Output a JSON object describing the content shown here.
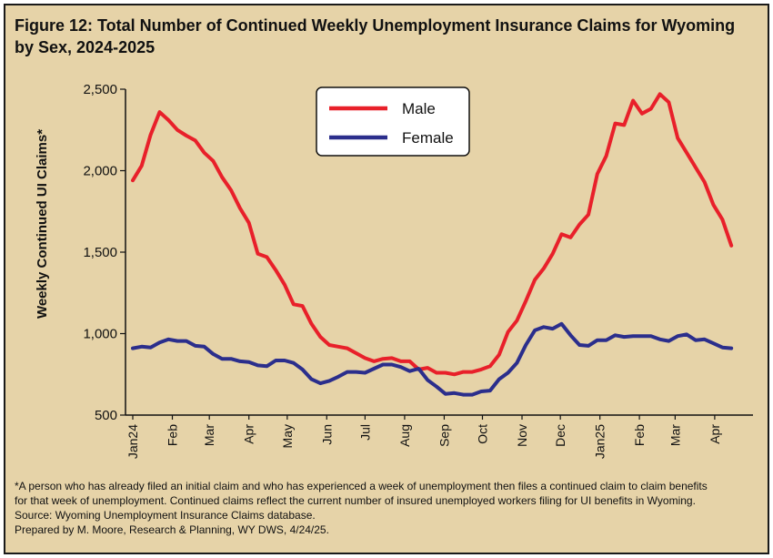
{
  "title": "Figure 12: Total Number of Continued Weekly Unemployment Insurance Claims for Wyoming by Sex, 2024-2025",
  "chart_data": {
    "type": "line",
    "ylabel": "Weekly Continued UI Claims*",
    "xlabel": "",
    "ylim": [
      500,
      2500
    ],
    "yticks": [
      500,
      1000,
      1500,
      2000,
      2500
    ],
    "ytick_labels": [
      "500",
      "1,000",
      "1,500",
      "2,000",
      "2,500"
    ],
    "grid": false,
    "legend": "top-center",
    "week_count": 69,
    "month_ticks": [
      {
        "label": "Jan24",
        "week": 0
      },
      {
        "label": "Feb",
        "week": 4.43
      },
      {
        "label": "Mar",
        "week": 8.57
      },
      {
        "label": "Apr",
        "week": 13
      },
      {
        "label": "May",
        "week": 17.29
      },
      {
        "label": "Jun",
        "week": 21.71
      },
      {
        "label": "Jul",
        "week": 26
      },
      {
        "label": "Aug",
        "week": 30.43
      },
      {
        "label": "Sep",
        "week": 34.86
      },
      {
        "label": "Oct",
        "week": 39.14
      },
      {
        "label": "Nov",
        "week": 43.57
      },
      {
        "label": "Dec",
        "week": 47.86
      },
      {
        "label": "Jan25",
        "week": 52.29
      },
      {
        "label": "Feb",
        "week": 56.71
      },
      {
        "label": "Mar",
        "week": 60.71
      },
      {
        "label": "Apr",
        "week": 65.14
      }
    ],
    "series": [
      {
        "name": "Male",
        "color": "#e8202a",
        "values": [
          1940,
          2030,
          2220,
          2360,
          2310,
          2250,
          2215,
          2185,
          2110,
          2060,
          1960,
          1880,
          1770,
          1680,
          1490,
          1470,
          1390,
          1300,
          1180,
          1170,
          1060,
          980,
          930,
          920,
          910,
          880,
          850,
          830,
          845,
          850,
          830,
          830,
          780,
          790,
          760,
          760,
          750,
          765,
          765,
          780,
          800,
          870,
          1010,
          1080,
          1200,
          1330,
          1400,
          1490,
          1610,
          1590,
          1670,
          1730,
          1980,
          2090,
          2290,
          2280,
          2430,
          2350,
          2380,
          2470,
          2420,
          2200,
          2110,
          2020,
          1930,
          1790,
          1700,
          1540
        ]
      },
      {
        "name": "Female",
        "color": "#2b2e8c",
        "values": [
          910,
          920,
          915,
          945,
          965,
          955,
          955,
          925,
          920,
          875,
          845,
          845,
          830,
          825,
          805,
          800,
          835,
          835,
          820,
          780,
          720,
          695,
          710,
          735,
          765,
          765,
          760,
          785,
          810,
          810,
          795,
          770,
          785,
          715,
          675,
          630,
          635,
          625,
          625,
          645,
          650,
          720,
          760,
          820,
          930,
          1020,
          1040,
          1030,
          1060,
          990,
          930,
          925,
          960,
          960,
          990,
          980,
          985,
          985,
          985,
          965,
          955,
          985,
          995,
          960,
          965,
          940,
          915,
          910
        ]
      }
    ]
  },
  "notes": [
    "*A person who has already filed an initial claim and who has experienced a week of unemployment then files a continued claim to claim benefits",
    "for that week of unemployment. Continued claims reflect the current number of insured unemployed workers filing for UI benefits in Wyoming.",
    "Source: Wyoming Unemployment Insurance Claims database.",
    "Prepared by M. Moore, Research & Planning, WY DWS, 4/24/25."
  ]
}
